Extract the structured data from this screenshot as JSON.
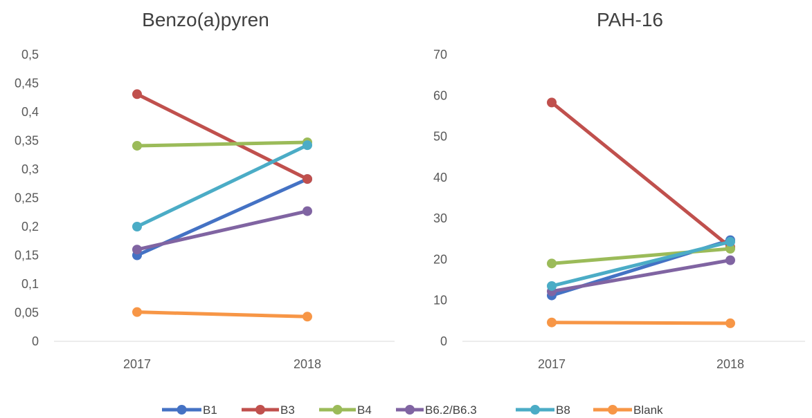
{
  "chart_data": [
    {
      "type": "line",
      "title": "Benzo(a)pyren",
      "categories": [
        "2017",
        "2018"
      ],
      "y_tick_labels": [
        "0",
        "0,05",
        "0,1",
        "0,15",
        "0,2",
        "0,25",
        "0,3",
        "0,35",
        "0,4",
        "0,45",
        "0,5"
      ],
      "ylim": [
        0,
        0.5
      ],
      "grid": false,
      "series": [
        {
          "name": "B1",
          "color": "#4472C4",
          "values": [
            0.15,
            0.283
          ]
        },
        {
          "name": "B3",
          "color": "#C0504D",
          "values": [
            0.431,
            0.283
          ]
        },
        {
          "name": "B4",
          "color": "#9BBB59",
          "values": [
            0.341,
            0.347
          ]
        },
        {
          "name": "B6.2/B6.3",
          "color": "#8064A2",
          "values": [
            0.16,
            0.227
          ]
        },
        {
          "name": "B8",
          "color": "#4BACC6",
          "values": [
            0.2,
            0.342
          ]
        },
        {
          "name": "Blank",
          "color": "#F79646",
          "values": [
            0.051,
            0.043
          ]
        }
      ]
    },
    {
      "type": "line",
      "title": "PAH-16",
      "categories": [
        "2017",
        "2018"
      ],
      "y_tick_labels": [
        "0",
        "10",
        "20",
        "30",
        "40",
        "50",
        "60",
        "70"
      ],
      "ylim": [
        0,
        70
      ],
      "grid": false,
      "series": [
        {
          "name": "B1",
          "color": "#4472C4",
          "values": [
            11.2,
            24.7
          ]
        },
        {
          "name": "B3",
          "color": "#C0504D",
          "values": [
            58.3,
            23.0
          ]
        },
        {
          "name": "B4",
          "color": "#9BBB59",
          "values": [
            19.0,
            22.6
          ]
        },
        {
          "name": "B6.2/B6.3",
          "color": "#8064A2",
          "values": [
            12.2,
            19.8
          ]
        },
        {
          "name": "B8",
          "color": "#4BACC6",
          "values": [
            13.5,
            24.3
          ]
        },
        {
          "name": "Blank",
          "color": "#F79646",
          "values": [
            4.6,
            4.4
          ]
        }
      ]
    }
  ],
  "legend": {
    "placement": "bottom",
    "items": [
      {
        "label": "B1",
        "color": "#4472C4"
      },
      {
        "label": "B3",
        "color": "#C0504D"
      },
      {
        "label": "B4",
        "color": "#9BBB59"
      },
      {
        "label": "B6.2/B6.3",
        "color": "#8064A2"
      },
      {
        "label": "B8",
        "color": "#4BACC6"
      },
      {
        "label": "Blank",
        "color": "#F79646"
      }
    ]
  }
}
